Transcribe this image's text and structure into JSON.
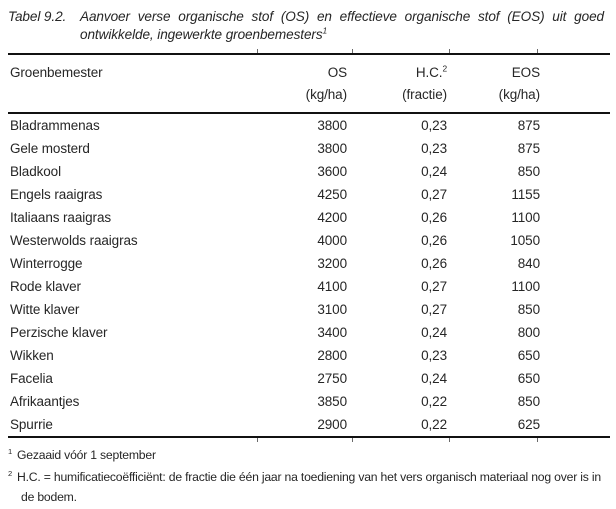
{
  "title": {
    "label": "Tabel 9.2.",
    "text": "Aanvoer verse organische stof (OS) en effectieve organische stof (EOS) uit goed ontwikkelde, ingewerkte groenbemesters",
    "footnote_ref": "1"
  },
  "table": {
    "columns": [
      {
        "label": "Groenbemester",
        "sup": "",
        "unit": ""
      },
      {
        "label": "OS",
        "sup": "",
        "unit": "(kg/ha)"
      },
      {
        "label": "H.C.",
        "sup": "2",
        "unit": "(fractie)"
      },
      {
        "label": "EOS",
        "sup": "",
        "unit": "(kg/ha)"
      }
    ],
    "rows": [
      [
        "Bladrammenas",
        "3800",
        "0,23",
        "875"
      ],
      [
        "Gele mosterd",
        "3800",
        "0,23",
        "875"
      ],
      [
        "Bladkool",
        "3600",
        "0,24",
        "850"
      ],
      [
        "Engels raaigras",
        "4250",
        "0,27",
        "1155"
      ],
      [
        "Italiaans raaigras",
        "4200",
        "0,26",
        "1100"
      ],
      [
        "Westerwolds raaigras",
        "4000",
        "0,26",
        "1050"
      ],
      [
        "Winterrogge",
        "3200",
        "0,26",
        "840"
      ],
      [
        "Rode klaver",
        "4100",
        "0,27",
        "1100"
      ],
      [
        "Witte klaver",
        "3100",
        "0,27",
        "850"
      ],
      [
        "Perzische klaver",
        "3400",
        "0,24",
        "800"
      ],
      [
        "Wikken",
        "2800",
        "0,23",
        "650"
      ],
      [
        "Facelia",
        "2750",
        "0,24",
        "650"
      ],
      [
        "Afrikaantjes",
        "3850",
        "0,22",
        "850"
      ],
      [
        "Spurrie",
        "2900",
        "0,22",
        "625"
      ]
    ]
  },
  "footnotes": [
    {
      "ref": "1",
      "text": "Gezaaid vóór 1 september"
    },
    {
      "ref": "2",
      "text": "H.C. = humificatiecoëfficiënt: de fractie die één jaar na toediening van het vers organisch materiaal nog over is in de bodem."
    }
  ],
  "colors": {
    "text": "#262626",
    "rule": "#111111",
    "background": "#ffffff"
  }
}
